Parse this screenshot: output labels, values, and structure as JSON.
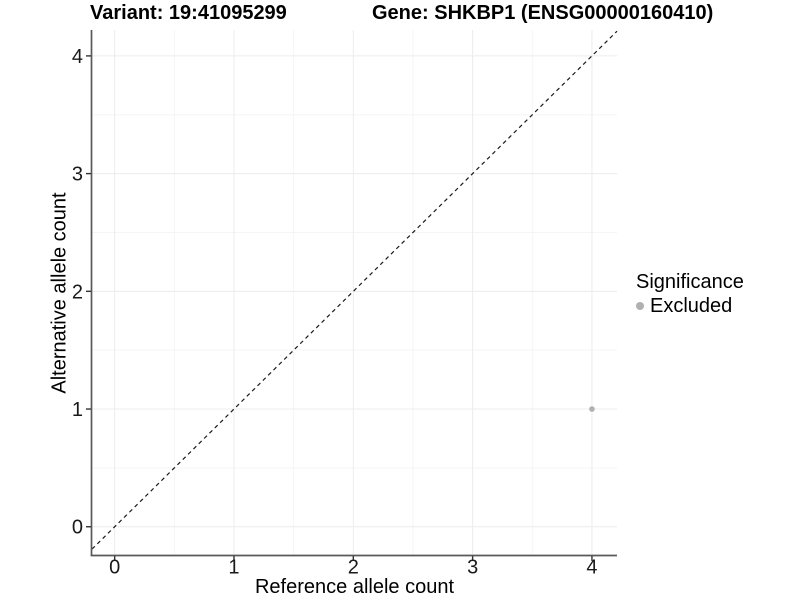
{
  "header": {
    "variant_title": "Variant: 19:41095299",
    "gene_title": "Gene: SHKBP1 (ENSG00000160410)"
  },
  "chart_data": {
    "type": "scatter",
    "title_left": "Variant: 19:41095299",
    "title_right": "Gene: SHKBP1 (ENSG00000160410)",
    "xlabel": "Reference allele count",
    "ylabel": "Alternative allele count",
    "xlim": [
      -0.19,
      4.21
    ],
    "ylim": [
      -0.24,
      4.22
    ],
    "x_ticks": [
      0,
      1,
      2,
      3,
      4
    ],
    "y_ticks": [
      0,
      1,
      2,
      3,
      4
    ],
    "x_minor_gridlines": [
      0.5,
      1.5,
      2.5,
      3.5
    ],
    "y_minor_gridlines": [
      0.5,
      1.5,
      2.5,
      3.5
    ],
    "grid": "major+minor",
    "legend_position": "right",
    "series": [
      {
        "name": "Excluded",
        "color": "#b0b0b0",
        "points": [
          {
            "x": 4,
            "y": 1
          }
        ]
      }
    ],
    "reference_line": {
      "kind": "identity y=x",
      "style": "dashed",
      "color": "#1a1a1a"
    },
    "legend": {
      "title": "Significance",
      "items": [
        {
          "label": "Excluded",
          "color": "#b0b0b0",
          "marker": "circle"
        }
      ]
    }
  },
  "colors": {
    "point": "#b0b0b0",
    "grid_major": "#ececec",
    "grid_minor": "#f5f5f5",
    "axis_line": "#595959",
    "tick": "#333333",
    "text": "#1a1a1a"
  }
}
